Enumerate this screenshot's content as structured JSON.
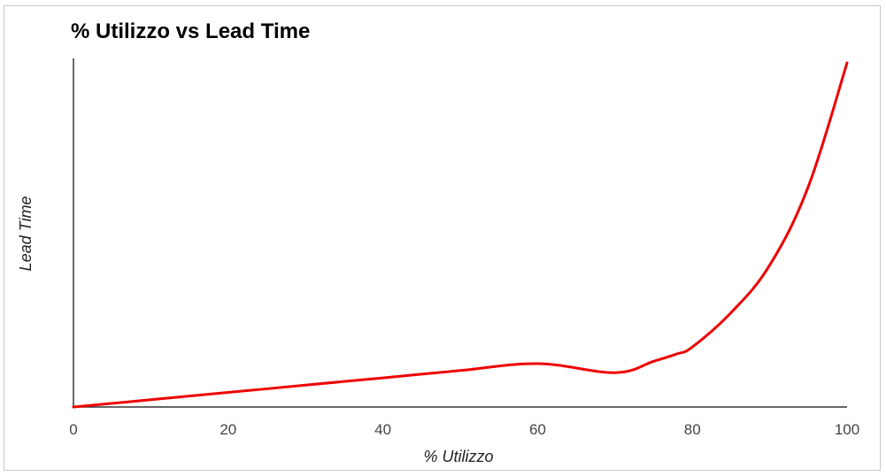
{
  "chart_data": {
    "type": "line",
    "title": "% Utilizzo vs Lead Time",
    "xlabel": "% Utilizzo",
    "ylabel": "Lead Time",
    "xlim": [
      0,
      100
    ],
    "ylim": [
      0,
      100
    ],
    "x_ticks": [
      "0",
      "20",
      "40",
      "60",
      "80",
      "100"
    ],
    "y_ticks": [],
    "grid": false,
    "legend": "none",
    "colors": {
      "line": "#ee0000",
      "axis": "#333333"
    },
    "series": [
      {
        "x": [
          0,
          10,
          20,
          30,
          40,
          50,
          60,
          70,
          75,
          78,
          80,
          85,
          90,
          95,
          100
        ],
        "y": [
          0,
          2.1,
          4.2,
          6.3,
          8.4,
          10.5,
          12.5,
          9.9,
          13.2,
          15.3,
          17.3,
          27.2,
          40.9,
          63.6,
          99.2
        ]
      }
    ]
  }
}
